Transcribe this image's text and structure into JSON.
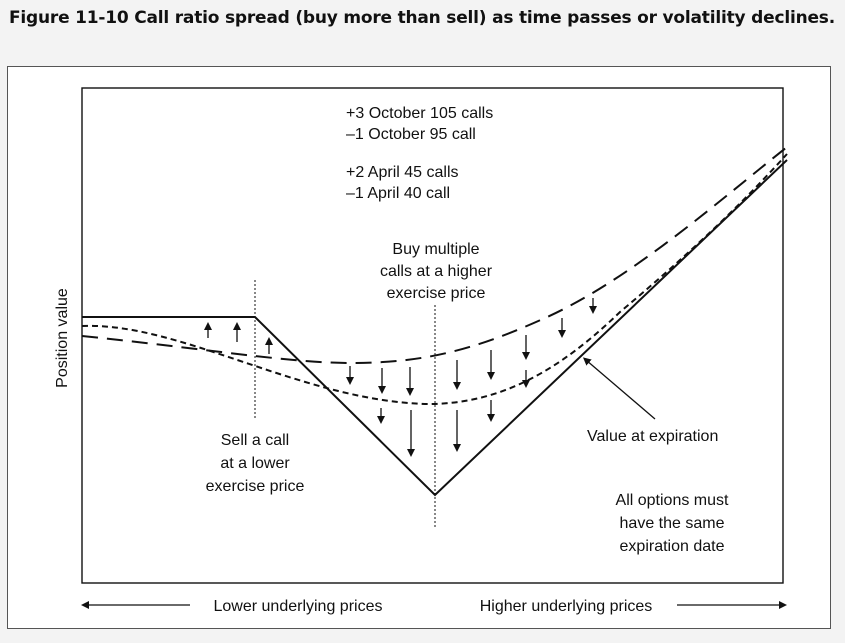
{
  "figure": {
    "caption": "Figure 11-10  Call ratio spread (buy more than sell) as time passes or volatility declines."
  },
  "chart_data": {
    "type": "line",
    "title": "",
    "ylabel": "Position value",
    "xlabel_left": "Lower underlying prices",
    "xlabel_right": "Higher underlying prices",
    "positions": {
      "group1": [
        "+3 October 105 calls",
        "–1 October 95 call"
      ],
      "group2": [
        "+2 April 45 calls",
        "–1 April 40 call"
      ]
    },
    "annotations": {
      "buy_label": [
        "Buy multiple",
        "calls at a higher",
        "exercise price"
      ],
      "sell_label": [
        "Sell a call",
        "at a lower",
        "exercise price"
      ],
      "expiration_label": "Value at expiration",
      "note": [
        "All options must",
        "have the same",
        "expiration date"
      ]
    },
    "grid": false,
    "series": [
      {
        "name": "Value at expiration",
        "style": "solid"
      },
      {
        "style": "dashed-short"
      },
      {
        "style": "dashed-long"
      }
    ]
  }
}
